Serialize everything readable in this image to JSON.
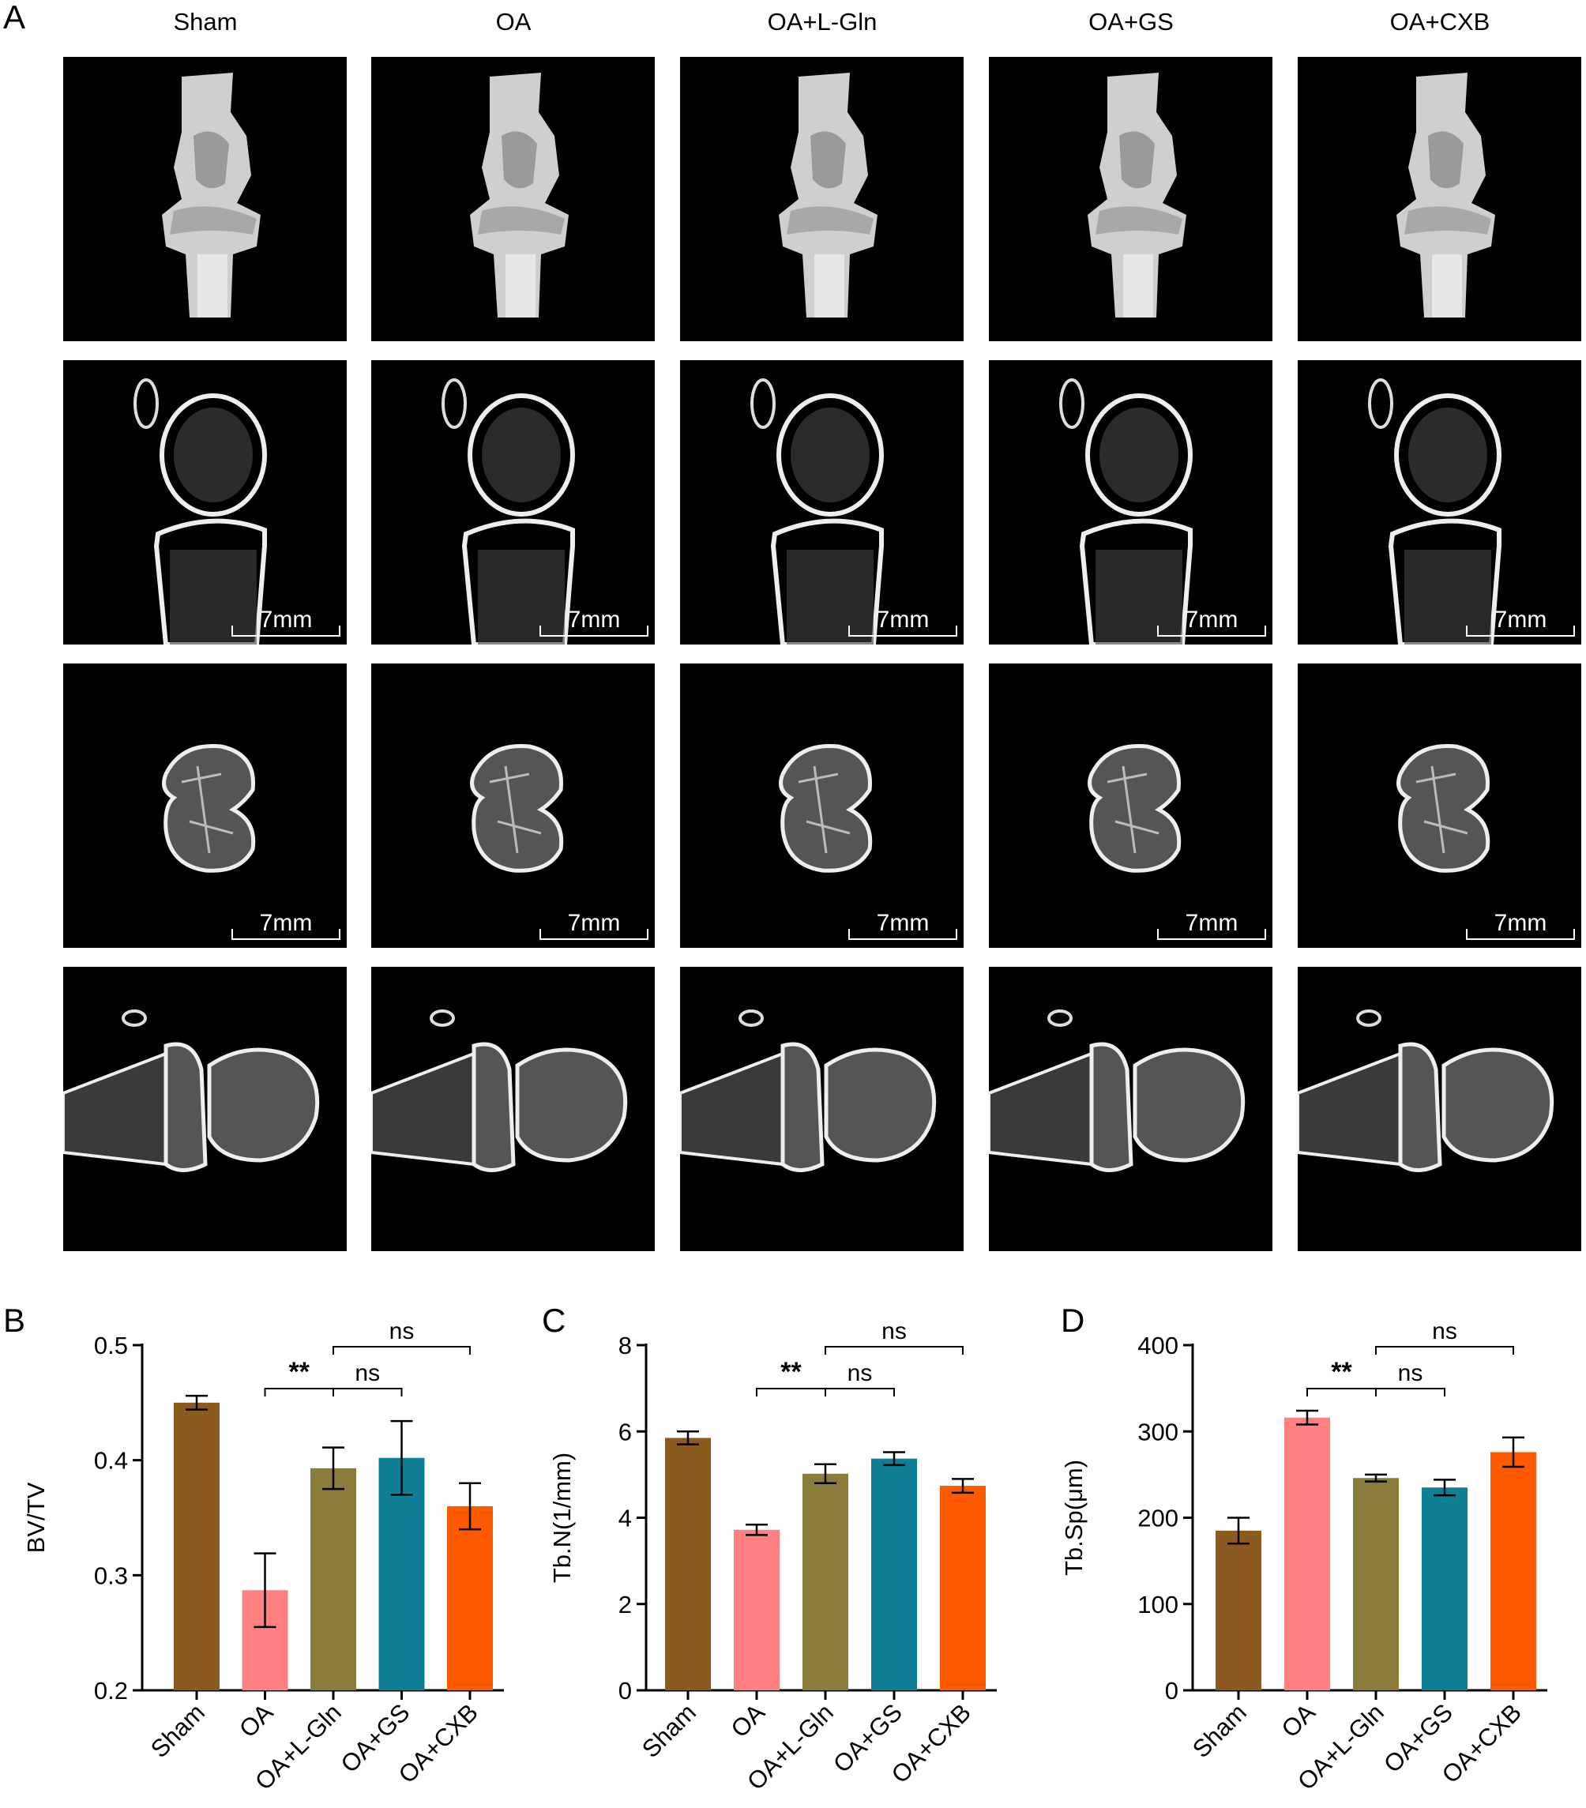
{
  "panel_labels": [
    "A",
    "B",
    "C",
    "D"
  ],
  "groups": [
    "Sham",
    "OA",
    "OA+L-Gln",
    "OA+GS",
    "OA+CXB"
  ],
  "image_rows": [
    {
      "type": "3d-render",
      "scalebar": ""
    },
    {
      "type": "sagittal-section",
      "scalebar": "7mm"
    },
    {
      "type": "axial-section",
      "scalebar": "7mm"
    },
    {
      "type": "coronal-section",
      "scalebar": ""
    }
  ],
  "colors": {
    "Sham": "#8b5a1f",
    "OA": "#ff8080",
    "OA+L-Gln": "#8a7d3c",
    "OA+GS": "#0f7f96",
    "OA+CXB": "#ff5a00"
  },
  "chart_data": [
    {
      "panel": "B",
      "type": "bar",
      "categories": [
        "Sham",
        "OA",
        "OA+L-Gln",
        "OA+GS",
        "OA+CXB"
      ],
      "values": [
        0.45,
        0.287,
        0.393,
        0.402,
        0.36
      ],
      "errors": [
        0.006,
        0.032,
        0.018,
        0.032,
        0.02
      ],
      "ylabel": "BV/TV",
      "ylim": [
        0.2,
        0.5
      ],
      "yticks": [
        "0.2",
        "0.3",
        "0.4",
        "0.5"
      ],
      "tick_values": [
        0.2,
        0.3,
        0.4,
        0.5
      ],
      "annotations": [
        {
          "from": "OA",
          "to": "OA+L-Gln",
          "label": "**",
          "level": 1
        },
        {
          "from": "OA+L-Gln",
          "to": "OA+GS",
          "label": "ns",
          "level": 1
        },
        {
          "from": "OA+L-Gln",
          "to": "OA+CXB",
          "label": "ns",
          "level": 2
        }
      ]
    },
    {
      "panel": "C",
      "type": "bar",
      "categories": [
        "Sham",
        "OA",
        "OA+L-Gln",
        "OA+GS",
        "OA+CXB"
      ],
      "values": [
        5.85,
        3.72,
        5.02,
        5.37,
        4.74
      ],
      "errors": [
        0.15,
        0.12,
        0.22,
        0.15,
        0.16
      ],
      "ylabel": "Tb.N(1/mm)",
      "ylim": [
        0,
        8
      ],
      "yticks": [
        "0",
        "2",
        "4",
        "6",
        "8"
      ],
      "tick_values": [
        0,
        2,
        4,
        6,
        8
      ],
      "annotations": [
        {
          "from": "OA",
          "to": "OA+L-Gln",
          "label": "**",
          "level": 1
        },
        {
          "from": "OA+L-Gln",
          "to": "OA+GS",
          "label": "ns",
          "level": 1
        },
        {
          "from": "OA+L-Gln",
          "to": "OA+CXB",
          "label": "ns",
          "level": 2
        }
      ]
    },
    {
      "panel": "D",
      "type": "bar",
      "categories": [
        "Sham",
        "OA",
        "OA+L-Gln",
        "OA+GS",
        "OA+CXB"
      ],
      "values": [
        185,
        316,
        246,
        235,
        276
      ],
      "errors": [
        15,
        8,
        4,
        9,
        17
      ],
      "ylabel": "Tb.Sp(μm)",
      "ylim": [
        0,
        400
      ],
      "yticks": [
        "0",
        "100",
        "200",
        "300",
        "400"
      ],
      "tick_values": [
        0,
        100,
        200,
        300,
        400
      ],
      "annotations": [
        {
          "from": "OA",
          "to": "OA+L-Gln",
          "label": "**",
          "level": 1
        },
        {
          "from": "OA+L-Gln",
          "to": "OA+GS",
          "label": "ns",
          "level": 1
        },
        {
          "from": "OA+L-Gln",
          "to": "OA+CXB",
          "label": "ns",
          "level": 2
        }
      ]
    }
  ]
}
